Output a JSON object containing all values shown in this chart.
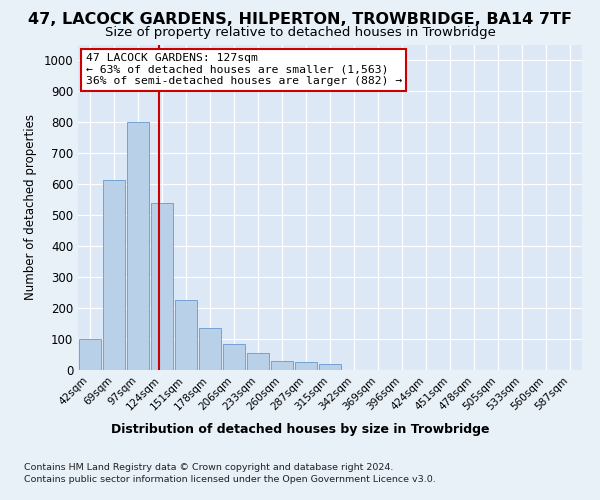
{
  "title1": "47, LACOCK GARDENS, HILPERTON, TROWBRIDGE, BA14 7TF",
  "title2": "Size of property relative to detached houses in Trowbridge",
  "xlabel": "Distribution of detached houses by size in Trowbridge",
  "ylabel": "Number of detached properties",
  "categories": [
    "42sqm",
    "69sqm",
    "97sqm",
    "124sqm",
    "151sqm",
    "178sqm",
    "206sqm",
    "233sqm",
    "260sqm",
    "287sqm",
    "315sqm",
    "342sqm",
    "369sqm",
    "396sqm",
    "424sqm",
    "451sqm",
    "478sqm",
    "505sqm",
    "533sqm",
    "560sqm",
    "587sqm"
  ],
  "values": [
    100,
    615,
    800,
    540,
    225,
    135,
    85,
    55,
    30,
    25,
    20,
    0,
    0,
    0,
    0,
    0,
    0,
    0,
    0,
    0,
    0
  ],
  "bar_color": "#b8d0e8",
  "bar_edge_color": "#6699cc",
  "vline_color": "#cc0000",
  "vline_pos": 2.87,
  "annotation_text": "47 LACOCK GARDENS: 127sqm\n← 63% of detached houses are smaller (1,563)\n36% of semi-detached houses are larger (882) →",
  "ylim": [
    0,
    1050
  ],
  "yticks": [
    0,
    100,
    200,
    300,
    400,
    500,
    600,
    700,
    800,
    900,
    1000
  ],
  "footnote1": "Contains HM Land Registry data © Crown copyright and database right 2024.",
  "footnote2": "Contains public sector information licensed under the Open Government Licence v3.0.",
  "bg_color": "#dce8f5",
  "fig_color": "#e8f0f8"
}
